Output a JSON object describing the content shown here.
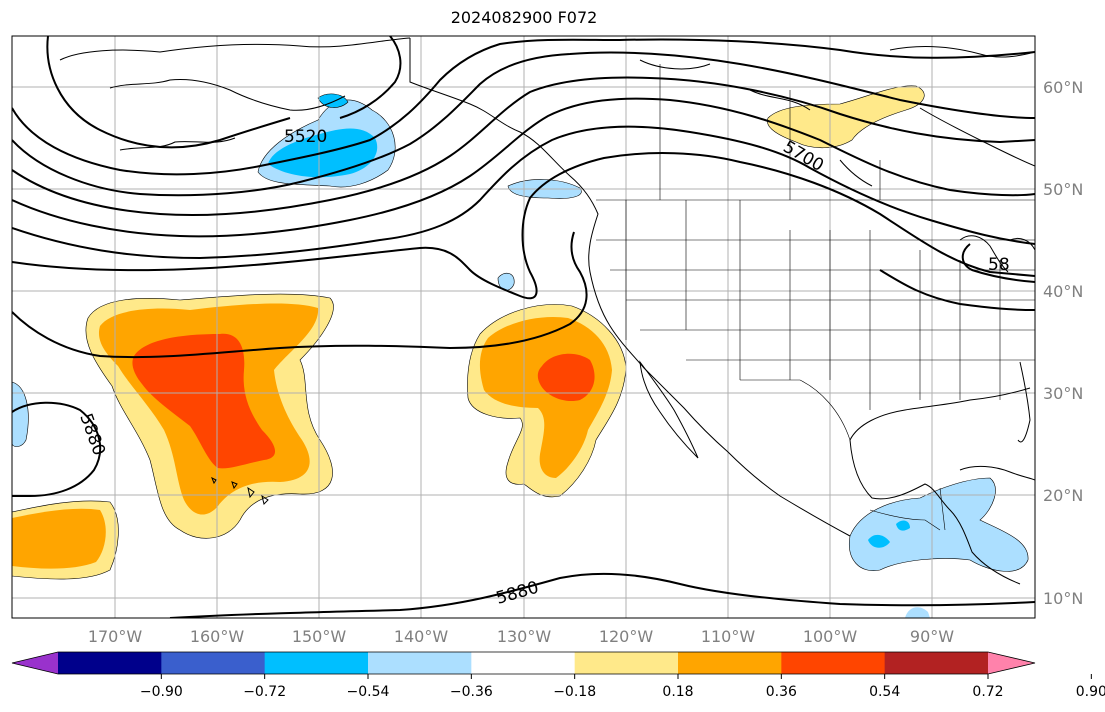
{
  "title": "2024082900 F072",
  "map": {
    "projection": "PlateCarree",
    "lon_range": [
      -180,
      -80
    ],
    "lat_range": [
      7,
      64
    ],
    "gridlines": true,
    "lon_ticks": [
      "170°W",
      "160°W",
      "150°W",
      "140°W",
      "130°W",
      "120°W",
      "110°W",
      "100°W",
      "90°W"
    ],
    "lat_ticks": [
      "60°N",
      "50°N",
      "40°N",
      "30°N",
      "20°N",
      "10°N"
    ],
    "contour_labels": [
      "5520",
      "5700",
      "5880",
      "5880",
      "58"
    ],
    "contour_color": "#000000",
    "shaded_field_colors": {
      "neg_strong": "#00bfff",
      "neg_weak": "#acdfff",
      "pos_weak": "#ffe98a",
      "pos_mid": "#ffa500",
      "pos_strong": "#ff4500"
    }
  },
  "colorbar": {
    "ticks": [
      "−0.90",
      "−0.72",
      "−0.54",
      "−0.36",
      "−0.18",
      "0.18",
      "0.36",
      "0.54",
      "0.72",
      "0.90"
    ],
    "colors": [
      "#9932cc",
      "#00008b",
      "#3a5fcd",
      "#00bfff",
      "#acdfff",
      "#ffffff",
      "#ffe98a",
      "#ffa500",
      "#ff4500",
      "#b22222",
      "#ff82ab"
    ]
  }
}
